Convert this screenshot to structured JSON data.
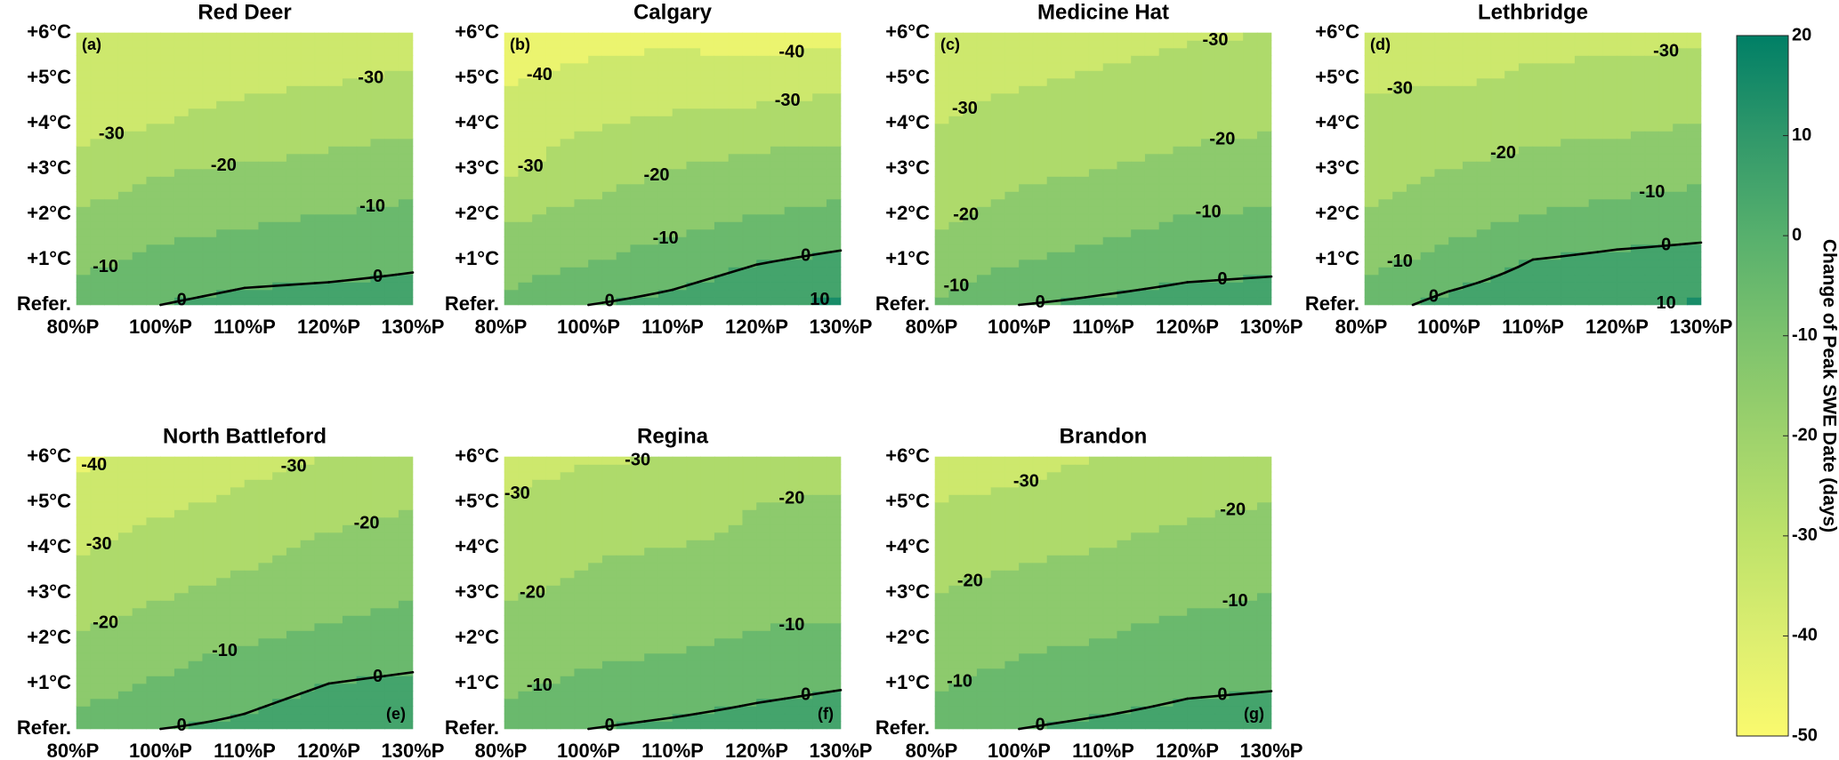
{
  "chart_data": [
    {
      "type": "contour",
      "title": "Red Deer",
      "panel_label": "(a)",
      "categories": [
        "80%P",
        "100%P",
        "110%P",
        "120%P",
        "130%P"
      ],
      "y_categories": [
        "Refer.",
        "+1°C",
        "+2°C",
        "+3°C",
        "+4°C",
        "+5°C",
        "+6°C"
      ],
      "z": [
        [
          -6,
          0,
          3,
          4,
          5
        ],
        [
          -13,
          -8,
          -5,
          -4,
          -2
        ],
        [
          -19,
          -14,
          -12,
          -10,
          -8
        ],
        [
          -27,
          -21,
          -19,
          -17,
          -14
        ],
        [
          -33,
          -30,
          -27,
          -24,
          -22
        ],
        [
          -36,
          -34,
          -32,
          -31,
          -29
        ],
        [
          -38,
          -37,
          -35,
          -34,
          -33
        ]
      ],
      "contour_labels": [
        -30,
        -30,
        -20,
        -10,
        -10,
        0,
        0
      ],
      "line_levels": [
        0
      ]
    },
    {
      "type": "contour",
      "title": "Calgary",
      "panel_label": "(b)",
      "categories": [
        "80%P",
        "100%P",
        "110%P",
        "120%P",
        "130%P"
      ],
      "y_categories": [
        "Refer.",
        "+1°C",
        "+2°C",
        "+3°C",
        "+4°C",
        "+5°C",
        "+6°C"
      ],
      "z": [
        [
          -8,
          0,
          3,
          8,
          12
        ],
        [
          -14,
          -11,
          -6,
          -1,
          2
        ],
        [
          -22,
          -17,
          -14,
          -10,
          -8
        ],
        [
          -32,
          -25,
          -20,
          -17,
          -15
        ],
        [
          -35,
          -31,
          -28,
          -25,
          -24
        ],
        [
          -41,
          -38,
          -36,
          -37,
          -33
        ],
        [
          -44,
          -43,
          -42,
          -44,
          -43
        ]
      ],
      "contour_labels": [
        -40,
        -40,
        -30,
        -30,
        -20,
        -10,
        0,
        0,
        10
      ],
      "line_levels": [
        0
      ]
    },
    {
      "type": "contour",
      "title": "Medicine Hat",
      "panel_label": "(c)",
      "categories": [
        "80%P",
        "100%P",
        "110%P",
        "120%P",
        "130%P"
      ],
      "y_categories": [
        "Refer.",
        "+1°C",
        "+2°C",
        "+3°C",
        "+4°C",
        "+5°C",
        "+6°C"
      ],
      "z": [
        [
          -9,
          0,
          2,
          4,
          5
        ],
        [
          -16,
          -11,
          -7,
          -4,
          -3
        ],
        [
          -22,
          -17,
          -14,
          -10,
          -9
        ],
        [
          -26,
          -22,
          -20,
          -18,
          -16
        ],
        [
          -30,
          -27,
          -25,
          -22,
          -21
        ],
        [
          -33,
          -31,
          -29,
          -27,
          -26
        ],
        [
          -35,
          -34,
          -33,
          -31,
          -30
        ]
      ],
      "contour_labels": [
        -30,
        -30,
        -20,
        -20,
        -10,
        -10,
        0,
        0
      ],
      "line_levels": [
        0
      ]
    },
    {
      "type": "contour",
      "title": "Lethbridge",
      "panel_label": "(d)",
      "categories": [
        "80%P",
        "100%P",
        "110%P",
        "120%P",
        "130%P"
      ],
      "y_categories": [
        "Refer.",
        "+1°C",
        "+2°C",
        "+3°C",
        "+4°C",
        "+5°C",
        "+6°C"
      ],
      "z": [
        [
          -4,
          3,
          7,
          9,
          11
        ],
        [
          -13,
          -7,
          0,
          2,
          3
        ],
        [
          -20,
          -15,
          -10,
          -7,
          -5
        ],
        [
          -24,
          -20,
          -17,
          -15,
          -13
        ],
        [
          -28,
          -25,
          -23,
          -22,
          -20
        ],
        [
          -31,
          -31,
          -29,
          -28,
          -28
        ],
        [
          -34,
          -33,
          -32,
          -32,
          -31
        ]
      ],
      "contour_labels": [
        -30,
        -30,
        -20,
        -10,
        -10,
        0,
        0,
        10
      ],
      "line_levels": [
        0
      ]
    },
    {
      "type": "contour",
      "title": "North Battleford",
      "panel_label": "(e)",
      "categories": [
        "80%P",
        "100%P",
        "110%P",
        "120%P",
        "130%P"
      ],
      "y_categories": [
        "Refer.",
        "+1°C",
        "+2°C",
        "+3°C",
        "+4°C",
        "+5°C",
        "+6°C"
      ],
      "z": [
        [
          -8,
          0,
          2,
          6,
          7
        ],
        [
          -14,
          -9,
          -4,
          0,
          2
        ],
        [
          -19,
          -15,
          -11,
          -8,
          -6
        ],
        [
          -27,
          -21,
          -17,
          -14,
          -11
        ],
        [
          -31,
          -26,
          -23,
          -18,
          -16
        ],
        [
          -36,
          -32,
          -28,
          -24,
          -21
        ],
        [
          -42,
          -38,
          -33,
          -30,
          -28
        ]
      ],
      "contour_labels": [
        -40,
        -30,
        -30,
        -20,
        -20,
        -10,
        0,
        0
      ],
      "line_levels": [
        0
      ]
    },
    {
      "type": "contour",
      "title": "Regina",
      "panel_label": "(f)",
      "categories": [
        "80%P",
        "100%P",
        "110%P",
        "120%P",
        "130%P"
      ],
      "y_categories": [
        "Refer.",
        "+1°C",
        "+2°C",
        "+3°C",
        "+4°C",
        "+5°C",
        "+6°C"
      ],
      "z": [
        [
          -6,
          0,
          2,
          4,
          6
        ],
        [
          -12,
          -8,
          -6,
          -3,
          -1
        ],
        [
          -17,
          -14,
          -12,
          -9,
          -8
        ],
        [
          -21,
          -18,
          -16,
          -14,
          -13
        ],
        [
          -25,
          -21,
          -20,
          -18,
          -16
        ],
        [
          -30,
          -26,
          -25,
          -20,
          -19
        ],
        [
          -33,
          -31,
          -30,
          -26,
          -24
        ]
      ],
      "contour_labels": [
        -30,
        -30,
        -20,
        -20,
        -10,
        -10,
        0,
        0
      ],
      "line_levels": [
        0
      ]
    },
    {
      "type": "contour",
      "title": "Brandon",
      "panel_label": "(g)",
      "categories": [
        "80%P",
        "100%P",
        "110%P",
        "120%P",
        "130%P"
      ],
      "y_categories": [
        "Refer.",
        "+1°C",
        "+2°C",
        "+3°C",
        "+4°C",
        "+5°C",
        "+6°C"
      ],
      "z": [
        [
          -5,
          0,
          2,
          4,
          5
        ],
        [
          -11,
          -7,
          -5,
          -2,
          -1
        ],
        [
          -16,
          -12,
          -10,
          -7,
          -6
        ],
        [
          -20,
          -17,
          -15,
          -12,
          -10
        ],
        [
          -25,
          -22,
          -20,
          -17,
          -15
        ],
        [
          -30,
          -28,
          -25,
          -22,
          -20
        ],
        [
          -35,
          -33,
          -30,
          -28,
          -26
        ]
      ],
      "contour_labels": [
        -30,
        -20,
        -20,
        -10,
        -10,
        0,
        0
      ],
      "line_levels": [
        0
      ]
    }
  ],
  "colorbar": {
    "label": "Change of Peak SWE Date (days)",
    "lim": [
      -50,
      20
    ],
    "ticks": [
      20,
      10,
      0,
      -10,
      -20,
      -30,
      -40,
      -50
    ],
    "levels": [
      -50,
      -40,
      -30,
      -20,
      -10,
      0,
      10,
      20
    ],
    "colormap": [
      "#fafa6e",
      "#dcee70",
      "#bde26a",
      "#9ed26c",
      "#7cc26d",
      "#57b06d",
      "#30986a",
      "#007f66"
    ]
  }
}
